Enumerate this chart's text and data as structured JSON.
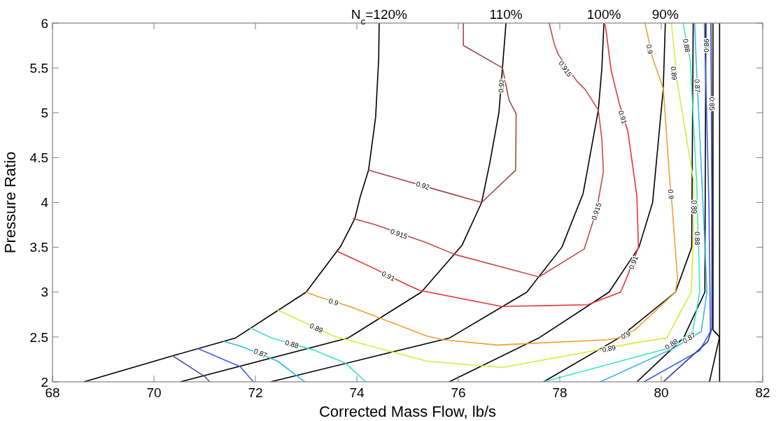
{
  "chart_data": {
    "type": "line",
    "xlabel": "Corrected Mass Flow, lb/s",
    "ylabel": "Pressure Ratio",
    "xlim": [
      68,
      82
    ],
    "ylim": [
      2,
      6
    ],
    "xticks": [
      68,
      70,
      72,
      74,
      76,
      78,
      80,
      82
    ],
    "yticks": [
      2,
      2.5,
      3,
      3.5,
      4,
      4.5,
      5,
      5.5,
      6
    ],
    "series": [
      {
        "color": "#000000",
        "x": [
          68.62,
          70.37,
          71.61,
          73.0,
          73.68,
          73.96,
          74.07,
          74.23,
          74.37,
          74.43,
          74.44
        ],
        "values": [
          2.0,
          2.29,
          2.49,
          3.0,
          3.51,
          3.82,
          4.07,
          4.36,
          4.95,
          5.6,
          6.0
        ]
      },
      {
        "color": "#000000",
        "x": [
          70.52,
          73.83,
          75.27,
          76.07,
          76.46,
          76.62,
          76.8,
          76.87,
          76.94
        ],
        "values": [
          2.0,
          2.49,
          3.0,
          3.52,
          4.0,
          4.44,
          5.0,
          5.5,
          6.0
        ]
      },
      {
        "color": "#000000",
        "x": [
          72.3,
          75.83,
          77.35,
          78.04,
          78.46,
          78.76,
          78.83,
          78.87
        ],
        "values": [
          2.0,
          2.49,
          3.0,
          3.5,
          4.1,
          5.03,
          5.5,
          6.0
        ]
      },
      {
        "color": "#000000",
        "x": [
          75.82,
          77.59,
          78.97,
          79.56,
          79.83,
          80.04,
          80.08
        ],
        "values": [
          2.0,
          2.49,
          3.0,
          3.5,
          4.0,
          5.27,
          6.0
        ]
      },
      {
        "color": "#000000",
        "x": [
          77.68,
          79.17,
          80.28,
          80.6,
          80.63
        ],
        "values": [
          2.0,
          2.49,
          3.0,
          3.5,
          6.0
        ]
      },
      {
        "color": "#000000",
        "x": [
          79.52,
          80.44,
          80.86,
          80.88
        ],
        "values": [
          2.0,
          2.49,
          3.0,
          6.0
        ]
      },
      {
        "color": "#000000",
        "x": [
          80.95,
          81.15,
          81.02,
          81.02
        ],
        "values": [
          2.0,
          2.5,
          2.58,
          6.0
        ]
      },
      {
        "color": "#000000",
        "x": [
          81.15,
          81.15
        ],
        "values": [
          2.0,
          6.0
        ]
      },
      {
        "color": "#a04848",
        "x": [
          74.23,
          75.77,
          76.46,
          77.13,
          77.14,
          77.0,
          76.87,
          76.1,
          76.1
        ],
        "values": [
          4.36,
          4.11,
          4.0,
          4.36,
          4.99,
          5.14,
          5.5,
          5.75,
          6.0
        ]
      },
      {
        "color": "#c84848",
        "x": [
          73.93,
          74.37,
          75.38,
          75.93,
          77.59,
          78.48,
          78.72,
          78.86,
          78.83,
          78.76,
          78.5,
          78.34,
          77.97,
          77.89,
          77.79
        ],
        "values": [
          3.82,
          3.75,
          3.55,
          3.42,
          3.17,
          3.48,
          3.9,
          4.34,
          4.7,
          5.03,
          5.26,
          5.35,
          5.65,
          5.77,
          6.0
        ]
      },
      {
        "color": "#e83434",
        "x": [
          73.63,
          74.32,
          75.0,
          75.24,
          76.86,
          78.55,
          79.2,
          79.34,
          79.55,
          79.52,
          79.34,
          79.17,
          79.01,
          78.9,
          78.87
        ],
        "values": [
          3.45,
          3.27,
          3.08,
          3.02,
          2.84,
          2.86,
          3.0,
          3.19,
          3.5,
          4.07,
          4.8,
          5.11,
          5.48,
          5.97,
          6.0
        ]
      },
      {
        "color": "#f0a030",
        "x": [
          73.0,
          73.24,
          73.86,
          75.38,
          75.7,
          76.76,
          78.97,
          79.17,
          79.48,
          80.28,
          80.32,
          80.21,
          80.17,
          80.04,
          79.83,
          79.68
        ],
        "values": [
          3.0,
          2.95,
          2.84,
          2.51,
          2.47,
          2.41,
          2.47,
          2.49,
          2.58,
          3.0,
          3.16,
          3.99,
          4.23,
          5.27,
          5.61,
          6.0
        ]
      },
      {
        "color": "#d8ec3c",
        "x": [
          72.44,
          72.86,
          73.54,
          75.38,
          76.86,
          78.51,
          79.43,
          80.11,
          80.59,
          80.64,
          80.64,
          80.32,
          80.2
        ],
        "values": [
          2.8,
          2.69,
          2.51,
          2.23,
          2.16,
          2.33,
          2.43,
          2.49,
          3.0,
          3.68,
          4.23,
          5.33,
          6.0
        ]
      },
      {
        "color": "#3ce8c0",
        "x": [
          71.9,
          72.32,
          73.17,
          73.77,
          74.18
        ],
        "values": [
          2.6,
          2.49,
          2.35,
          2.21,
          2.0
        ]
      },
      {
        "color": "#3ce8c0",
        "x": [
          77.68,
          80.11,
          80.62,
          80.76,
          80.7,
          80.57,
          80.43
        ],
        "values": [
          2.0,
          2.37,
          2.56,
          3.0,
          4.2,
          5.59,
          6.0
        ]
      },
      {
        "color": "#38b8f0",
        "x": [
          71.38,
          71.7,
          72.44,
          72.97
        ],
        "values": [
          2.45,
          2.4,
          2.23,
          2.0
        ]
      },
      {
        "color": "#38b8f0",
        "x": [
          78.8,
          80.23,
          80.79,
          80.9,
          80.83,
          80.68,
          80.66
        ],
        "values": [
          2.0,
          2.37,
          2.56,
          3.0,
          3.9,
          5.68,
          6.0
        ]
      },
      {
        "color": "#3a5ef0",
        "x": [
          70.87,
          71.7,
          71.96
        ],
        "values": [
          2.37,
          2.17,
          2.0
        ]
      },
      {
        "color": "#3a5ef0",
        "x": [
          79.66,
          80.76,
          80.97,
          80.94,
          80.85
        ],
        "values": [
          2.0,
          2.35,
          2.56,
          3.97,
          6.0
        ]
      },
      {
        "color": "#5050a8",
        "x": [
          70.37,
          71.0,
          71.1
        ],
        "values": [
          2.29,
          2.06,
          2.0
        ]
      },
      {
        "color": "#3030a0",
        "x": [
          80.04,
          80.92,
          81.0,
          81.0,
          80.98
        ],
        "values": [
          2.0,
          2.45,
          2.6,
          4.0,
          6.0
        ]
      }
    ],
    "annotations": [
      {
        "text": "N$_{c}$=120%",
        "x": 74.44,
        "y": 6
      },
      {
        "text": "110%",
        "x": 76.94,
        "y": 6
      },
      {
        "text": "100%",
        "x": 78.87,
        "y": 6
      },
      {
        "text": "90%",
        "x": 80.08,
        "y": 6
      },
      {
        "text": "0.92",
        "x": 75.3,
        "y": 4.19
      },
      {
        "text": "0.92",
        "x": 76.85,
        "y": 5.3
      },
      {
        "text": "0.915",
        "x": 74.83,
        "y": 3.65
      },
      {
        "text": "0.915",
        "x": 78.72,
        "y": 3.9
      },
      {
        "text": "0.915",
        "x": 78.11,
        "y": 5.49
      },
      {
        "text": "0.91",
        "x": 74.62,
        "y": 3.18
      },
      {
        "text": "0.91",
        "x": 79.45,
        "y": 3.33
      },
      {
        "text": "0.91",
        "x": 79.24,
        "y": 4.95
      },
      {
        "text": "0.9",
        "x": 73.54,
        "y": 2.89
      },
      {
        "text": "0.9",
        "x": 79.3,
        "y": 2.52
      },
      {
        "text": "0.9",
        "x": 80.19,
        "y": 4.09
      },
      {
        "text": "0.9",
        "x": 79.77,
        "y": 5.71
      },
      {
        "text": "0.89",
        "x": 73.2,
        "y": 2.6
      },
      {
        "text": "0.89",
        "x": 78.97,
        "y": 2.37
      },
      {
        "text": "0.89",
        "x": 80.64,
        "y": 3.95
      },
      {
        "text": "0.89",
        "x": 80.25,
        "y": 5.44
      },
      {
        "text": "0.88",
        "x": 72.72,
        "y": 2.42
      },
      {
        "text": "0.88",
        "x": 80.2,
        "y": 2.42
      },
      {
        "text": "0.88",
        "x": 80.71,
        "y": 3.6
      },
      {
        "text": "0.88",
        "x": 80.5,
        "y": 5.75
      },
      {
        "text": "0.87",
        "x": 72.1,
        "y": 2.32
      },
      {
        "text": "0.87",
        "x": 80.55,
        "y": 2.49
      },
      {
        "text": "0.87",
        "x": 80.71,
        "y": 5.3
      },
      {
        "text": "0.86",
        "x": 80.89,
        "y": 5.75
      },
      {
        "text": "0.85",
        "x": 81.0,
        "y": 5.1
      }
    ]
  }
}
